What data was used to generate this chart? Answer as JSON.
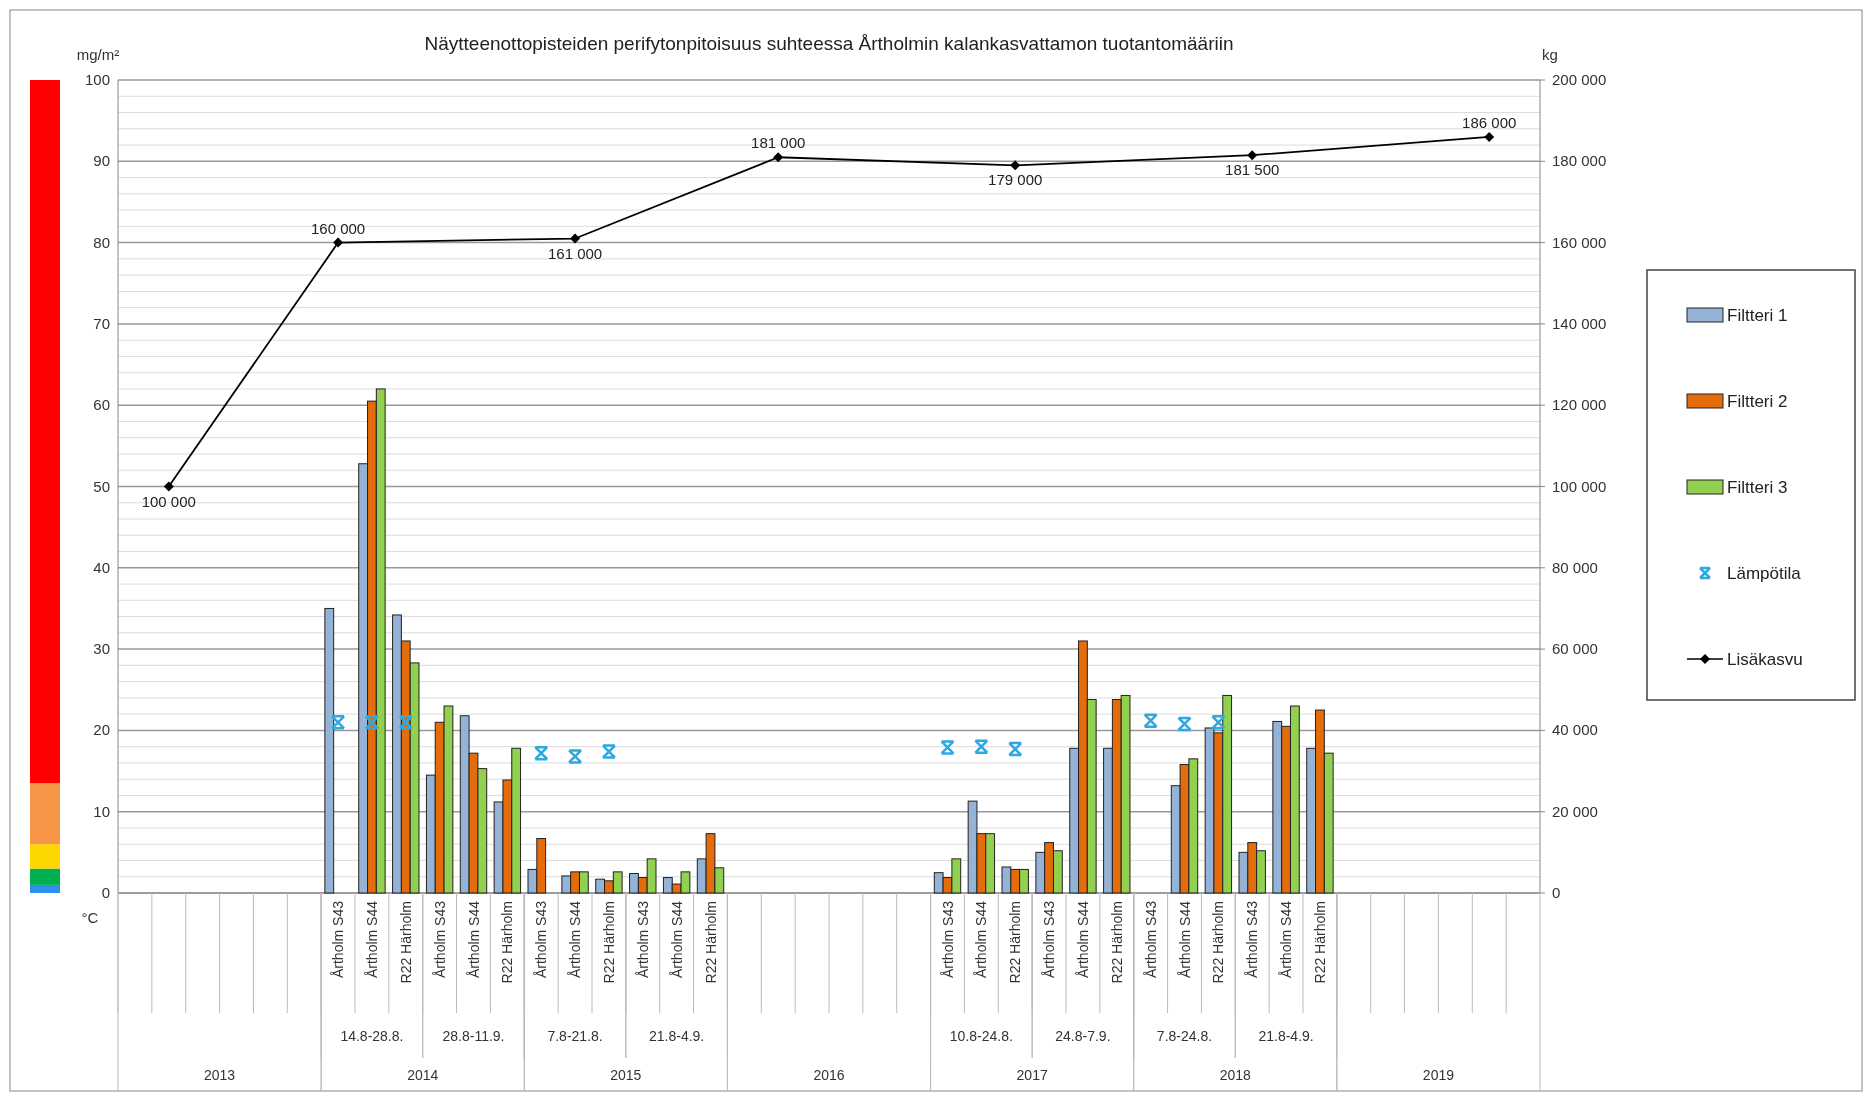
{
  "chart_data": {
    "type": "bar",
    "title": "Näytteenottopisteiden perifytonpitoisuus suhteessa Årtholmin kalankasvattamon tuotantomääriin",
    "ylabel": "mg/m²",
    "y2label": "kg",
    "annotations": [
      "°C",
      "14.8-28.8.",
      "28.8-11.9.",
      "7.8-21.8.",
      "21.8-4.9.",
      "10.8-24.8.",
      "24.8-7.9.",
      "7.8-24.8.",
      "21.8-4.9.",
      "2013",
      "2014",
      "2015",
      "2016",
      "2017",
      "2018",
      "2019"
    ],
    "categories": [
      null,
      null,
      null,
      null,
      null,
      null,
      "Årtholm S43",
      "Årtholm S44",
      "R22 Härholm",
      "Årtholm S43",
      "Årtholm S44",
      "R22 Härholm",
      "Årtholm S43",
      "Årtholm S44",
      "R22 Härholm",
      "Årtholm S43",
      "Årtholm S44",
      "R22 Härholm",
      null,
      null,
      null,
      null,
      null,
      null,
      "Årtholm S43",
      "Årtholm S44",
      "R22 Härholm",
      "Årtholm S43",
      "Årtholm S44",
      "R22 Härholm",
      "Årtholm S43",
      "Årtholm S44",
      "R22 Härholm",
      "Årtholm S43",
      "Årtholm S44",
      "R22 Härholm",
      null,
      null,
      null,
      null,
      null,
      null
    ],
    "series": [
      {
        "name": "Filtteri 1",
        "color": "#95b3d7",
        "values": [
          null,
          null,
          null,
          null,
          null,
          null,
          35,
          52.8,
          34.2,
          14.5,
          21.8,
          11.2,
          2.9,
          2.1,
          1.7,
          2.4,
          1.9,
          4.2,
          null,
          null,
          null,
          null,
          null,
          null,
          2.5,
          11.3,
          3.2,
          5,
          17.8,
          17.8,
          null,
          13.2,
          20.3,
          5,
          21.1,
          17.8,
          null,
          null,
          null,
          null,
          null,
          null
        ]
      },
      {
        "name": "Filtteri 2",
        "color": "#e46c0a",
        "values": [
          null,
          null,
          null,
          null,
          null,
          null,
          null,
          60.5,
          31,
          21,
          17.2,
          13.9,
          6.7,
          2.6,
          1.5,
          1.9,
          1.1,
          7.3,
          null,
          null,
          null,
          null,
          null,
          null,
          1.9,
          7.3,
          2.9,
          6.2,
          31,
          23.8,
          null,
          15.8,
          19.7,
          6.2,
          20.5,
          22.5,
          null,
          null,
          null,
          null,
          null,
          null
        ]
      },
      {
        "name": "Filtteri 3",
        "color": "#92d050",
        "values": [
          null,
          null,
          null,
          null,
          null,
          null,
          null,
          62,
          28.3,
          23,
          15.3,
          17.8,
          null,
          2.6,
          2.6,
          4.2,
          2.6,
          3.1,
          null,
          null,
          null,
          null,
          null,
          null,
          4.2,
          7.3,
          2.9,
          5.2,
          23.8,
          24.3,
          null,
          16.5,
          24.3,
          5.2,
          23,
          17.2,
          null,
          null,
          null,
          null,
          null,
          null
        ]
      },
      {
        "name": "Lämpötila",
        "type": "scatter",
        "marker": "cross",
        "color": "#2ea8e0",
        "values": [
          null,
          null,
          null,
          null,
          null,
          null,
          21,
          21,
          21,
          null,
          null,
          null,
          17.2,
          16.8,
          17.4,
          null,
          null,
          null,
          null,
          null,
          null,
          null,
          null,
          null,
          17.9,
          18,
          17.7,
          null,
          null,
          null,
          21.2,
          20.8,
          21,
          null,
          null,
          null,
          null,
          null,
          null,
          null,
          null,
          null
        ]
      },
      {
        "name": "Lisäkasvu",
        "type": "line",
        "axis": "y2",
        "marker": "diamond",
        "color": "#000000",
        "values": [
          null,
          100000,
          null,
          null,
          null,
          null,
          160000,
          null,
          null,
          null,
          null,
          null,
          null,
          161000,
          null,
          null,
          null,
          null,
          null,
          181000,
          null,
          null,
          null,
          null,
          null,
          null,
          179000,
          null,
          null,
          null,
          null,
          null,
          null,
          181500,
          null,
          null,
          null,
          null,
          null,
          null,
          186000,
          null
        ],
        "value_labels": [
          null,
          "100 000",
          null,
          null,
          null,
          null,
          "160 000",
          null,
          null,
          null,
          null,
          null,
          null,
          "161 000",
          null,
          null,
          null,
          null,
          null,
          "181 000",
          null,
          null,
          null,
          null,
          null,
          null,
          "179 000",
          null,
          null,
          null,
          null,
          null,
          null,
          "181 500",
          null,
          null,
          null,
          null,
          null,
          null,
          "186 000",
          null
        ]
      }
    ],
    "ylim": [
      0,
      100
    ],
    "yticks": [
      0,
      {
        "value": 2,
        "label": null
      },
      {
        "value": 4,
        "label": null
      },
      {
        "value": 6,
        "label": null
      },
      {
        "value": 8,
        "label": null
      },
      10,
      {
        "value": 12,
        "label": null
      },
      {
        "value": 14,
        "label": null
      },
      {
        "value": 16,
        "label": null
      },
      {
        "value": 18,
        "label": null
      },
      20,
      {
        "value": 22,
        "label": null
      },
      {
        "value": 24,
        "label": null
      },
      {
        "value": 26,
        "label": null
      },
      {
        "value": 28,
        "label": null
      },
      30,
      {
        "value": 32,
        "label": null
      },
      {
        "value": 34,
        "label": null
      },
      {
        "value": 36,
        "label": null
      },
      {
        "value": 38,
        "label": null
      },
      40,
      {
        "value": 42,
        "label": null
      },
      {
        "value": 44,
        "label": null
      },
      {
        "value": 46,
        "label": null
      },
      {
        "value": 48,
        "label": null
      },
      50,
      {
        "value": 52,
        "label": null
      },
      {
        "value": 54,
        "label": null
      },
      {
        "value": 56,
        "label": null
      },
      {
        "value": 58,
        "label": null
      },
      60,
      {
        "value": 62,
        "label": null
      },
      {
        "value": 64,
        "label": null
      },
      {
        "value": 66,
        "label": null
      },
      {
        "value": 68,
        "label": null
      },
      70,
      {
        "value": 72,
        "label": null
      },
      {
        "value": 74,
        "label": null
      },
      {
        "value": 76,
        "label": null
      },
      {
        "value": 78,
        "label": null
      },
      80,
      {
        "value": 82,
        "label": null
      },
      {
        "value": 84,
        "label": null
      },
      {
        "value": 86,
        "label": null
      },
      {
        "value": 88,
        "label": null
      },
      90,
      {
        "value": 92,
        "label": null
      },
      {
        "value": 94,
        "label": null
      },
      {
        "value": 96,
        "label": null
      },
      {
        "value": 98,
        "label": null
      },
      100
    ],
    "y2lim": [
      0,
      200000
    ],
    "y2ticks": [
      {
        "value": 0,
        "label": "0"
      },
      {
        "value": 20000,
        "label": "20 000"
      },
      {
        "value": 40000,
        "label": "40 000"
      },
      {
        "value": 60000,
        "label": "60 000"
      },
      {
        "value": 80000,
        "label": "80 000"
      },
      {
        "value": 100000,
        "label": "100 000"
      },
      {
        "value": 120000,
        "label": "120 000"
      },
      {
        "value": 140000,
        "label": "140 000"
      },
      {
        "value": 160000,
        "label": "160 000"
      },
      {
        "value": 180000,
        "label": "180 000"
      },
      {
        "value": 200000,
        "label": "200 000"
      }
    ],
    "grid": "y",
    "legend": "right"
  }
}
